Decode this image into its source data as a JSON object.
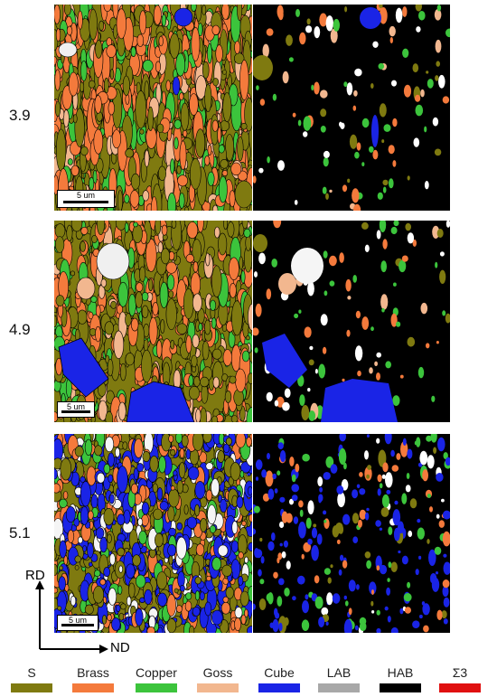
{
  "rows": [
    {
      "label": "3.9",
      "scale": "5 um"
    },
    {
      "label": "4.9",
      "scale": "5 um"
    },
    {
      "label": "5.1",
      "scale": "5 um"
    }
  ],
  "axes": {
    "vertical": "RD",
    "horizontal": "ND"
  },
  "legend": [
    {
      "label": "S",
      "color": "#7f7a10"
    },
    {
      "label": "Brass",
      "color": "#f47a3c"
    },
    {
      "label": "Copper",
      "color": "#3cc43c"
    },
    {
      "label": "Goss",
      "color": "#f2b78f"
    },
    {
      "label": "Cube",
      "color": "#1a24e6"
    },
    {
      "label": "LAB",
      "color": "#a8a8a8"
    },
    {
      "label": "HAB",
      "color": "#000000"
    },
    {
      "label": "Σ3",
      "color": "#e01010"
    }
  ]
}
